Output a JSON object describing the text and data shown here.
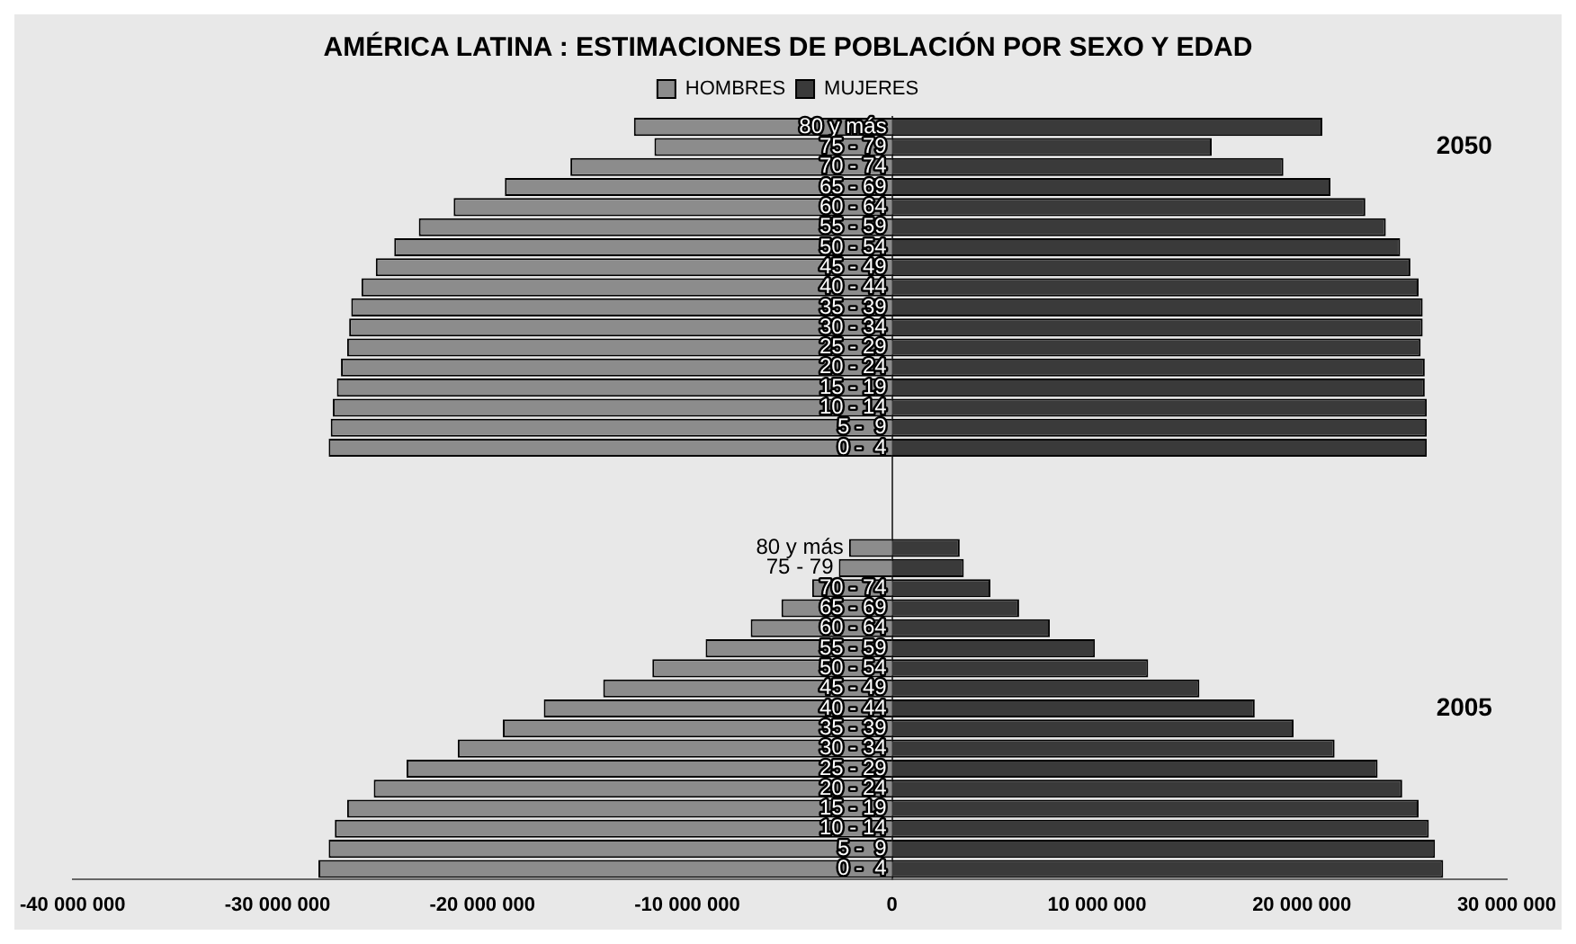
{
  "chart_data": {
    "type": "bar",
    "orientation": "horizontal",
    "stacked": true,
    "title": "AMÉRICA LATINA : ESTIMACIONES DE POBLACIÓN POR SEXO Y EDAD",
    "categories": [
      "80 y más",
      "75 - 79",
      "70 - 74",
      "65 - 69",
      "60 - 64",
      "55 - 59",
      "50 - 54",
      "45 - 49",
      "40 - 44",
      "35 - 39",
      "30 - 34",
      "25 - 29",
      "20 - 24",
      "15 - 19",
      "10 - 14",
      "5 -  9",
      "0 -  4",
      null,
      null,
      null,
      null,
      "80 y más",
      "75 - 79",
      "70 - 74",
      "65 - 69",
      "60 - 64",
      "55 - 59",
      "50 - 54",
      "45 - 49",
      "40 - 44",
      "35 - 39",
      "30 - 34",
      "25 - 29",
      "20 - 24",
      "15 - 19",
      "10 - 14",
      "5 -  9",
      "0 -  4"
    ],
    "series": [
      {
        "name": "HOMBRES",
        "color": "#8c8c8c",
        "values": [
          -12600000,
          -11600000,
          -15700000,
          -18900000,
          -21400000,
          -23100000,
          -24300000,
          -25200000,
          -25900000,
          -26400000,
          -26500000,
          -26600000,
          -26900000,
          -27100000,
          -27300000,
          -27400000,
          -27500000,
          null,
          null,
          null,
          null,
          -2100000,
          -2600000,
          -3900000,
          -5400000,
          -6900000,
          -9100000,
          -11700000,
          -14100000,
          -17000000,
          -19000000,
          -21200000,
          -23700000,
          -25300000,
          -26600000,
          -27200000,
          -27500000,
          -28000000
        ]
      },
      {
        "name": "MUJERES",
        "color": "#3a3a3a",
        "values": [
          21000000,
          15600000,
          19100000,
          21400000,
          23100000,
          24100000,
          24800000,
          25300000,
          25700000,
          25900000,
          25900000,
          25800000,
          26000000,
          26000000,
          26100000,
          26100000,
          26100000,
          null,
          null,
          null,
          null,
          3300000,
          3500000,
          4800000,
          6200000,
          7700000,
          9900000,
          12500000,
          15000000,
          17700000,
          19600000,
          21600000,
          23700000,
          24900000,
          25700000,
          26200000,
          26500000,
          26900000
        ]
      }
    ],
    "xlim": [
      -40000000,
      30000000
    ],
    "xticks": [
      {
        "value": -40000000,
        "label": "-40 000 000"
      },
      {
        "value": -30000000,
        "label": "-30 000 000"
      },
      {
        "value": -20000000,
        "label": "-20 000 000"
      },
      {
        "value": -10000000,
        "label": "-10 000 000"
      },
      0,
      {
        "value": 10000000,
        "label": "10 000 000"
      },
      {
        "value": 20000000,
        "label": "20 000 000"
      },
      {
        "value": 30000000,
        "label": "30 000 000"
      }
    ],
    "annotations": [
      "2050",
      "2005"
    ],
    "legend": "top",
    "grid": false
  }
}
